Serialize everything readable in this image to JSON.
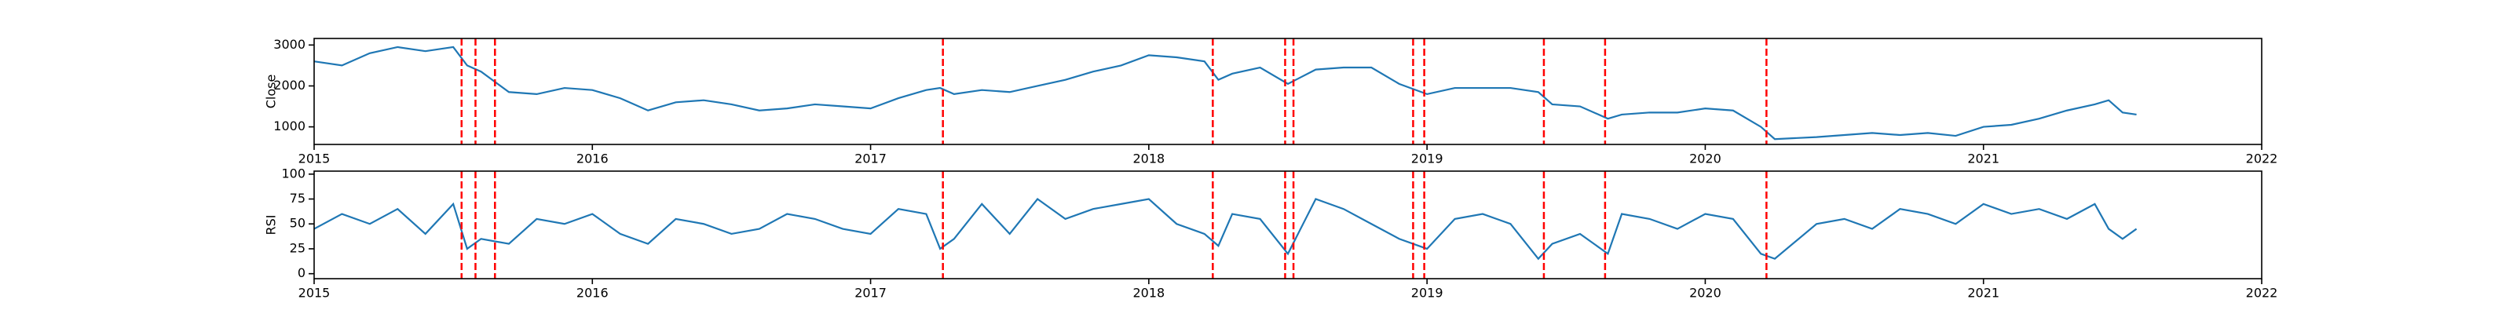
{
  "chart_data": [
    {
      "type": "line",
      "ylabel": "Close",
      "x": [
        2015.0,
        2015.1,
        2015.2,
        2015.3,
        2015.4,
        2015.5,
        2015.55,
        2015.6,
        2015.7,
        2015.8,
        2015.9,
        2016.0,
        2016.1,
        2016.2,
        2016.3,
        2016.4,
        2016.5,
        2016.6,
        2016.7,
        2016.8,
        2016.9,
        2017.0,
        2017.1,
        2017.2,
        2017.25,
        2017.3,
        2017.4,
        2017.5,
        2017.6,
        2017.7,
        2017.8,
        2017.9,
        2018.0,
        2018.1,
        2018.2,
        2018.25,
        2018.3,
        2018.4,
        2018.5,
        2018.6,
        2018.7,
        2018.8,
        2018.9,
        2019.0,
        2019.1,
        2019.2,
        2019.3,
        2019.4,
        2019.45,
        2019.55,
        2019.65,
        2019.7,
        2019.8,
        2019.9,
        2020.0,
        2020.1,
        2020.2,
        2020.25,
        2020.4,
        2020.5,
        2020.6,
        2020.7,
        2020.8,
        2020.9,
        2021.0,
        2021.1,
        2021.2,
        2021.3,
        2021.4,
        2021.45,
        2021.5,
        2021.55
      ],
      "series": [
        {
          "color": "#1f77b4",
          "values": [
            2600,
            2500,
            2800,
            2950,
            2850,
            2950,
            2500,
            2350,
            1850,
            1800,
            1950,
            1900,
            1700,
            1400,
            1600,
            1650,
            1550,
            1400,
            1450,
            1550,
            1500,
            1450,
            1700,
            1900,
            1950,
            1800,
            1900,
            1850,
            2000,
            2150,
            2350,
            2500,
            2750,
            2700,
            2600,
            2150,
            2300,
            2450,
            2050,
            2400,
            2450,
            2450,
            2050,
            1800,
            1950,
            1950,
            1950,
            1850,
            1550,
            1500,
            1200,
            1300,
            1350,
            1350,
            1450,
            1400,
            1000,
            700,
            750,
            800,
            850,
            800,
            850,
            780,
            1000,
            1050,
            1200,
            1400,
            1550,
            1650,
            1350,
            1300
          ]
        }
      ],
      "vlines": {
        "color": "red",
        "x": [
          2015.53,
          2015.58,
          2015.65,
          2017.26,
          2018.23,
          2018.49,
          2018.52,
          2018.95,
          2018.99,
          2019.42,
          2019.64,
          2020.22
        ]
      },
      "xlim": [
        2015,
        2022
      ],
      "xticks": [
        2015,
        2016,
        2017,
        2018,
        2019,
        2020,
        2021,
        2022
      ],
      "ylim": [
        570,
        3160
      ],
      "yticks": [
        1000,
        2000,
        3000
      ]
    },
    {
      "type": "line",
      "ylabel": "RSI",
      "x": [
        2015.0,
        2015.1,
        2015.2,
        2015.3,
        2015.4,
        2015.5,
        2015.55,
        2015.6,
        2015.7,
        2015.8,
        2015.9,
        2016.0,
        2016.1,
        2016.2,
        2016.3,
        2016.4,
        2016.5,
        2016.6,
        2016.7,
        2016.8,
        2016.9,
        2017.0,
        2017.1,
        2017.2,
        2017.25,
        2017.3,
        2017.4,
        2017.5,
        2017.6,
        2017.7,
        2017.8,
        2017.9,
        2018.0,
        2018.1,
        2018.2,
        2018.25,
        2018.3,
        2018.4,
        2018.5,
        2018.6,
        2018.7,
        2018.8,
        2018.9,
        2019.0,
        2019.1,
        2019.2,
        2019.3,
        2019.4,
        2019.45,
        2019.55,
        2019.65,
        2019.7,
        2019.8,
        2019.9,
        2020.0,
        2020.1,
        2020.2,
        2020.25,
        2020.4,
        2020.5,
        2020.6,
        2020.7,
        2020.8,
        2020.9,
        2021.0,
        2021.1,
        2021.2,
        2021.3,
        2021.4,
        2021.45,
        2021.5,
        2021.55
      ],
      "series": [
        {
          "color": "#1f77b4",
          "values": [
            45,
            60,
            50,
            65,
            40,
            70,
            25,
            35,
            30,
            55,
            50,
            60,
            40,
            30,
            55,
            50,
            40,
            45,
            60,
            55,
            45,
            40,
            65,
            60,
            25,
            35,
            70,
            40,
            75,
            55,
            65,
            70,
            75,
            50,
            40,
            28,
            60,
            55,
            20,
            75,
            65,
            50,
            35,
            25,
            55,
            60,
            50,
            15,
            30,
            40,
            20,
            60,
            55,
            45,
            60,
            55,
            20,
            15,
            50,
            55,
            45,
            65,
            60,
            50,
            70,
            60,
            65,
            55,
            70,
            45,
            35,
            45
          ]
        }
      ],
      "vlines": {
        "color": "red",
        "x": [
          2015.53,
          2015.58,
          2015.65,
          2017.26,
          2018.23,
          2018.49,
          2018.52,
          2018.95,
          2018.99,
          2019.42,
          2019.64,
          2020.22
        ]
      },
      "xlim": [
        2015,
        2022
      ],
      "xticks": [
        2015,
        2016,
        2017,
        2018,
        2019,
        2020,
        2021,
        2022
      ],
      "ylim": [
        -5,
        103
      ],
      "yticks": [
        0,
        25,
        50,
        75,
        100
      ]
    }
  ]
}
